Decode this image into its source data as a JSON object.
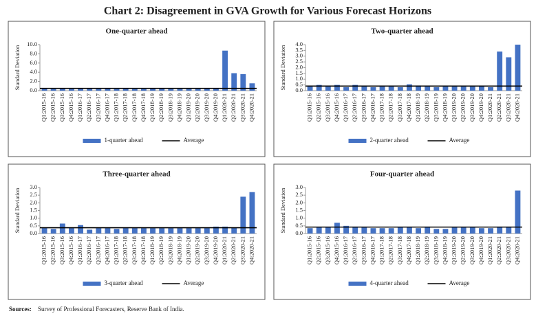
{
  "title": "Chart 2: Disagreement in GVA Growth for Various Forecast Horizons",
  "sources_label": "Sources:",
  "sources": "Survey of Professional Forecasters, Reserve Bank of India.",
  "chart_data": [
    {
      "type": "bar",
      "title": "One-quarter ahead",
      "y_label": "Standard Deviation",
      "categories": [
        "Q1:2015-16",
        "Q2:2015-16",
        "Q3:2015-16",
        "Q4:2015-16",
        "Q1:2016-17",
        "Q2:2016-17",
        "Q3:2016-17",
        "Q4:2016-17",
        "Q1:2017-18",
        "Q2:2017-18",
        "Q3:2017-18",
        "Q4:2017-18",
        "Q1:2018-19",
        "Q2:2018-19",
        "Q3:2018-19",
        "Q4:2018-19",
        "Q1:2019-20",
        "Q2:2019-20",
        "Q3:2019-20",
        "Q4:2019-20",
        "Q1:2020-21",
        "Q2:2020-21",
        "Q3:2020-21",
        "Q4:2020-21"
      ],
      "series": [
        {
          "name": "1-quarter ahead",
          "color": "#4472c4",
          "values": [
            0.4,
            0.35,
            0.4,
            0.35,
            0.4,
            0.45,
            0.35,
            0.4,
            0.35,
            0.4,
            0.35,
            0.35,
            0.4,
            0.4,
            0.35,
            0.35,
            0.35,
            0.35,
            0.4,
            0.4,
            8.7,
            3.8,
            3.6,
            1.6
          ]
        },
        {
          "name": "Average",
          "color": "#000000",
          "type": "line",
          "values": [
            0.5,
            0.5,
            0.5,
            0.5,
            0.5,
            0.5,
            0.5,
            0.5,
            0.5,
            0.5,
            0.5,
            0.5,
            0.5,
            0.5,
            0.5,
            0.5,
            0.5,
            0.5,
            0.5,
            0.5,
            0.5,
            0.5,
            0.5,
            0.5
          ]
        }
      ],
      "ylim": [
        0,
        10
      ],
      "yticks": [
        {
          "value": 0,
          "label": "0.0"
        },
        {
          "value": 2,
          "label": "2.0"
        },
        {
          "value": 4,
          "label": "4.0"
        },
        {
          "value": 6,
          "label": "6.0"
        },
        {
          "value": 8,
          "label": "8.0"
        },
        {
          "value": 10,
          "label": "10.0"
        }
      ]
    },
    {
      "type": "bar",
      "title": "Two-quarter ahead",
      "y_label": "Standard Deviation",
      "categories": [
        "Q1:2015-16",
        "Q2:2015-16",
        "Q3:2015-16",
        "Q4:2015-16",
        "Q1:2016-17",
        "Q2:2016-17",
        "Q3:2016-17",
        "Q4:2016-17",
        "Q1:2017-18",
        "Q2:2017-18",
        "Q3:2017-18",
        "Q4:2017-18",
        "Q1:2018-19",
        "Q2:2018-19",
        "Q3:2018-19",
        "Q4:2018-19",
        "Q1:2019-20",
        "Q2:2019-20",
        "Q3:2019-20",
        "Q4:2019-20",
        "Q1:2020-21",
        "Q2:2020-21",
        "Q3:2020-21",
        "Q4:2020-21"
      ],
      "series": [
        {
          "name": "2-quarter ahead",
          "color": "#4472c4",
          "values": [
            0.35,
            0.5,
            0.35,
            0.5,
            0.3,
            0.5,
            0.35,
            0.3,
            0.35,
            0.35,
            0.3,
            0.55,
            0.45,
            0.35,
            0.3,
            0.35,
            0.35,
            0.35,
            0.35,
            0.4,
            0.3,
            3.4,
            2.9,
            4.0
          ]
        },
        {
          "name": "Average",
          "color": "#000000",
          "type": "line",
          "values": [
            0.4,
            0.4,
            0.4,
            0.4,
            0.4,
            0.4,
            0.4,
            0.4,
            0.4,
            0.4,
            0.4,
            0.4,
            0.4,
            0.4,
            0.4,
            0.4,
            0.4,
            0.4,
            0.4,
            0.4,
            0.4,
            0.4,
            0.4,
            0.4
          ]
        }
      ],
      "ylim": [
        0,
        4
      ],
      "yticks": [
        {
          "value": 0,
          "label": "0.0"
        },
        {
          "value": 0.5,
          "label": "0.5"
        },
        {
          "value": 1,
          "label": "1.0"
        },
        {
          "value": 1.5,
          "label": "1.5"
        },
        {
          "value": 2,
          "label": "2.0"
        },
        {
          "value": 2.5,
          "label": "2.5"
        },
        {
          "value": 3,
          "label": "3.0"
        },
        {
          "value": 3.5,
          "label": "3.5"
        },
        {
          "value": 4,
          "label": "4.0"
        }
      ]
    },
    {
      "type": "bar",
      "title": "Three-quarter ahead",
      "y_label": "Standard Deviation",
      "categories": [
        "Q1:2015-16",
        "Q2:2015-16",
        "Q3:2015-16",
        "Q4:2015-16",
        "Q1:2016-17",
        "Q2:2016-17",
        "Q3:2016-17",
        "Q4:2016-17",
        "Q1:2017-18",
        "Q2:2017-18",
        "Q3:2017-18",
        "Q4:2017-18",
        "Q1:2018-19",
        "Q2:2018-19",
        "Q3:2018-19",
        "Q4:2018-19",
        "Q1:2019-20",
        "Q2:2019-20",
        "Q3:2019-20",
        "Q4:2019-20",
        "Q1:2020-21",
        "Q2:2020-21",
        "Q3:2020-21",
        "Q4:2020-21"
      ],
      "series": [
        {
          "name": "3-quarter ahead",
          "color": "#4472c4",
          "values": [
            0.35,
            0.3,
            0.65,
            0.35,
            0.55,
            0.25,
            0.35,
            0.35,
            0.3,
            0.35,
            0.35,
            0.35,
            0.35,
            0.35,
            0.35,
            0.35,
            0.35,
            0.35,
            0.35,
            0.45,
            0.45,
            0.4,
            2.4,
            2.7
          ]
        },
        {
          "name": "Average",
          "color": "#000000",
          "type": "line",
          "values": [
            0.38,
            0.38,
            0.38,
            0.38,
            0.38,
            0.38,
            0.38,
            0.38,
            0.38,
            0.38,
            0.38,
            0.38,
            0.38,
            0.38,
            0.38,
            0.38,
            0.38,
            0.38,
            0.38,
            0.38,
            0.38,
            0.38,
            0.38,
            0.38
          ]
        }
      ],
      "ylim": [
        0,
        3
      ],
      "yticks": [
        {
          "value": 0,
          "label": "0.0"
        },
        {
          "value": 0.5,
          "label": "0.5"
        },
        {
          "value": 1,
          "label": "1.0"
        },
        {
          "value": 1.5,
          "label": "1.5"
        },
        {
          "value": 2,
          "label": "2.0"
        },
        {
          "value": 2.5,
          "label": "2.5"
        },
        {
          "value": 3,
          "label": "3.0"
        }
      ]
    },
    {
      "type": "bar",
      "title": "Four-quarter ahead",
      "y_label": "Standard Deviation",
      "categories": [
        "Q1:2015-16",
        "Q2:2015-16",
        "Q3:2015-16",
        "Q4:2015-16",
        "Q1:2016-17",
        "Q2:2016-17",
        "Q3:2016-17",
        "Q4:2016-17",
        "Q1:2017-18",
        "Q2:2017-18",
        "Q3:2017-18",
        "Q4:2017-18",
        "Q1:2018-19",
        "Q2:2018-19",
        "Q3:2018-19",
        "Q4:2018-19",
        "Q1:2019-20",
        "Q2:2019-20",
        "Q3:2019-20",
        "Q4:2019-20",
        "Q1:2020-21",
        "Q2:2020-21",
        "Q3:2020-21",
        "Q4:2020-21"
      ],
      "series": [
        {
          "name": "4-quarter ahead",
          "color": "#4472c4",
          "values": [
            0.35,
            0.4,
            0.4,
            0.7,
            0.5,
            0.45,
            0.4,
            0.35,
            0.35,
            0.35,
            0.4,
            0.4,
            0.35,
            0.45,
            0.3,
            0.3,
            0.4,
            0.4,
            0.4,
            0.35,
            0.35,
            0.45,
            0.45,
            2.8
          ]
        },
        {
          "name": "Average",
          "color": "#000000",
          "type": "line",
          "values": [
            0.42,
            0.42,
            0.42,
            0.42,
            0.42,
            0.42,
            0.42,
            0.42,
            0.42,
            0.42,
            0.42,
            0.42,
            0.42,
            0.42,
            0.42,
            0.42,
            0.42,
            0.42,
            0.42,
            0.42,
            0.42,
            0.42,
            0.42,
            0.42
          ]
        }
      ],
      "ylim": [
        0,
        3
      ],
      "yticks": [
        {
          "value": 0,
          "label": "0.0"
        },
        {
          "value": 0.5,
          "label": "0.5"
        },
        {
          "value": 1,
          "label": "1.0"
        },
        {
          "value": 1.5,
          "label": "1.5"
        },
        {
          "value": 2,
          "label": "2.0"
        },
        {
          "value": 2.5,
          "label": "2.5"
        },
        {
          "value": 3,
          "label": "3.0"
        }
      ]
    }
  ]
}
